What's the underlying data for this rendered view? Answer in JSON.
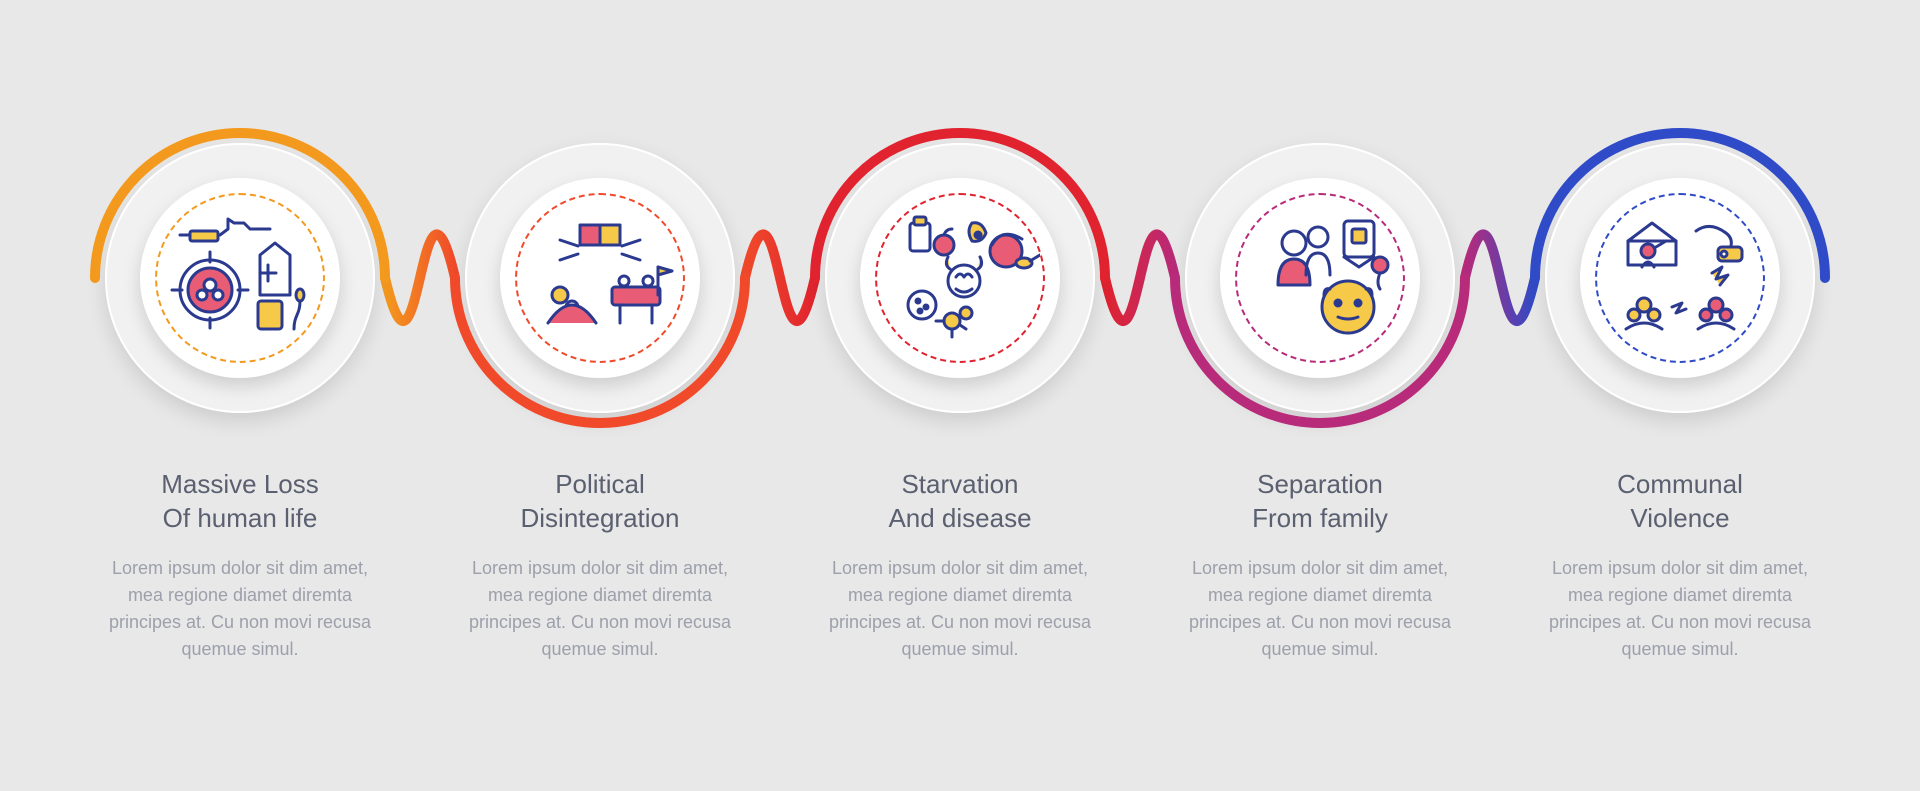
{
  "background_color": "#e8e8e8",
  "connector_stroke_width": 10,
  "ring": {
    "outer_d": 300,
    "mid_d": 270,
    "inner_d": 200,
    "dashed_d": 170,
    "mid_bg": "#f1f1f1",
    "inner_bg": "#ffffff",
    "arc_stroke_width": 10
  },
  "typography": {
    "title_fontsize": 26,
    "title_color": "#5a6070",
    "body_fontsize": 18,
    "body_color": "#9da0ab"
  },
  "icon_palette": {
    "stroke": "#2b3a8f",
    "accent_yellow": "#f7c948",
    "accent_pink": "#e85d75"
  },
  "items": [
    {
      "title": "Massive Loss\nOf human life",
      "body": "Lorem ipsum dolor sit dim amet, mea regione diamet diremta principes at. Cu non movi recusa quemue simul.",
      "ring_color": "#f39a1e",
      "arc_sweep": "top",
      "dashed_color": "#f39a1e",
      "icon": "loss"
    },
    {
      "title": "Political\nDisintegration",
      "body": "Lorem ipsum dolor sit dim amet, mea regione diamet diremta principes at. Cu non movi recusa quemue simul.",
      "ring_color": "#f04a2a",
      "arc_sweep": "bottom",
      "dashed_color": "#f04a2a",
      "icon": "political"
    },
    {
      "title": "Starvation\nAnd disease",
      "body": "Lorem ipsum dolor sit dim amet, mea regione diamet diremta principes at. Cu non movi recusa quemue simul.",
      "ring_color": "#e0232e",
      "arc_sweep": "top",
      "dashed_color": "#e0232e",
      "icon": "starvation"
    },
    {
      "title": "Separation\nFrom family",
      "body": "Lorem ipsum dolor sit dim amet, mea regione diamet diremta principes at. Cu non movi recusa quemue simul.",
      "ring_color": "#b82a7a",
      "arc_sweep": "bottom",
      "dashed_color": "#b82a7a",
      "icon": "family"
    },
    {
      "title": "Communal\nViolence",
      "body": "Lorem ipsum dolor sit dim amet, mea regione diamet diremta principes at. Cu non movi recusa quemue simul.",
      "ring_color": "#2f4bc7",
      "arc_sweep": "top",
      "dashed_color": "#2f4bc7",
      "icon": "violence"
    }
  ]
}
